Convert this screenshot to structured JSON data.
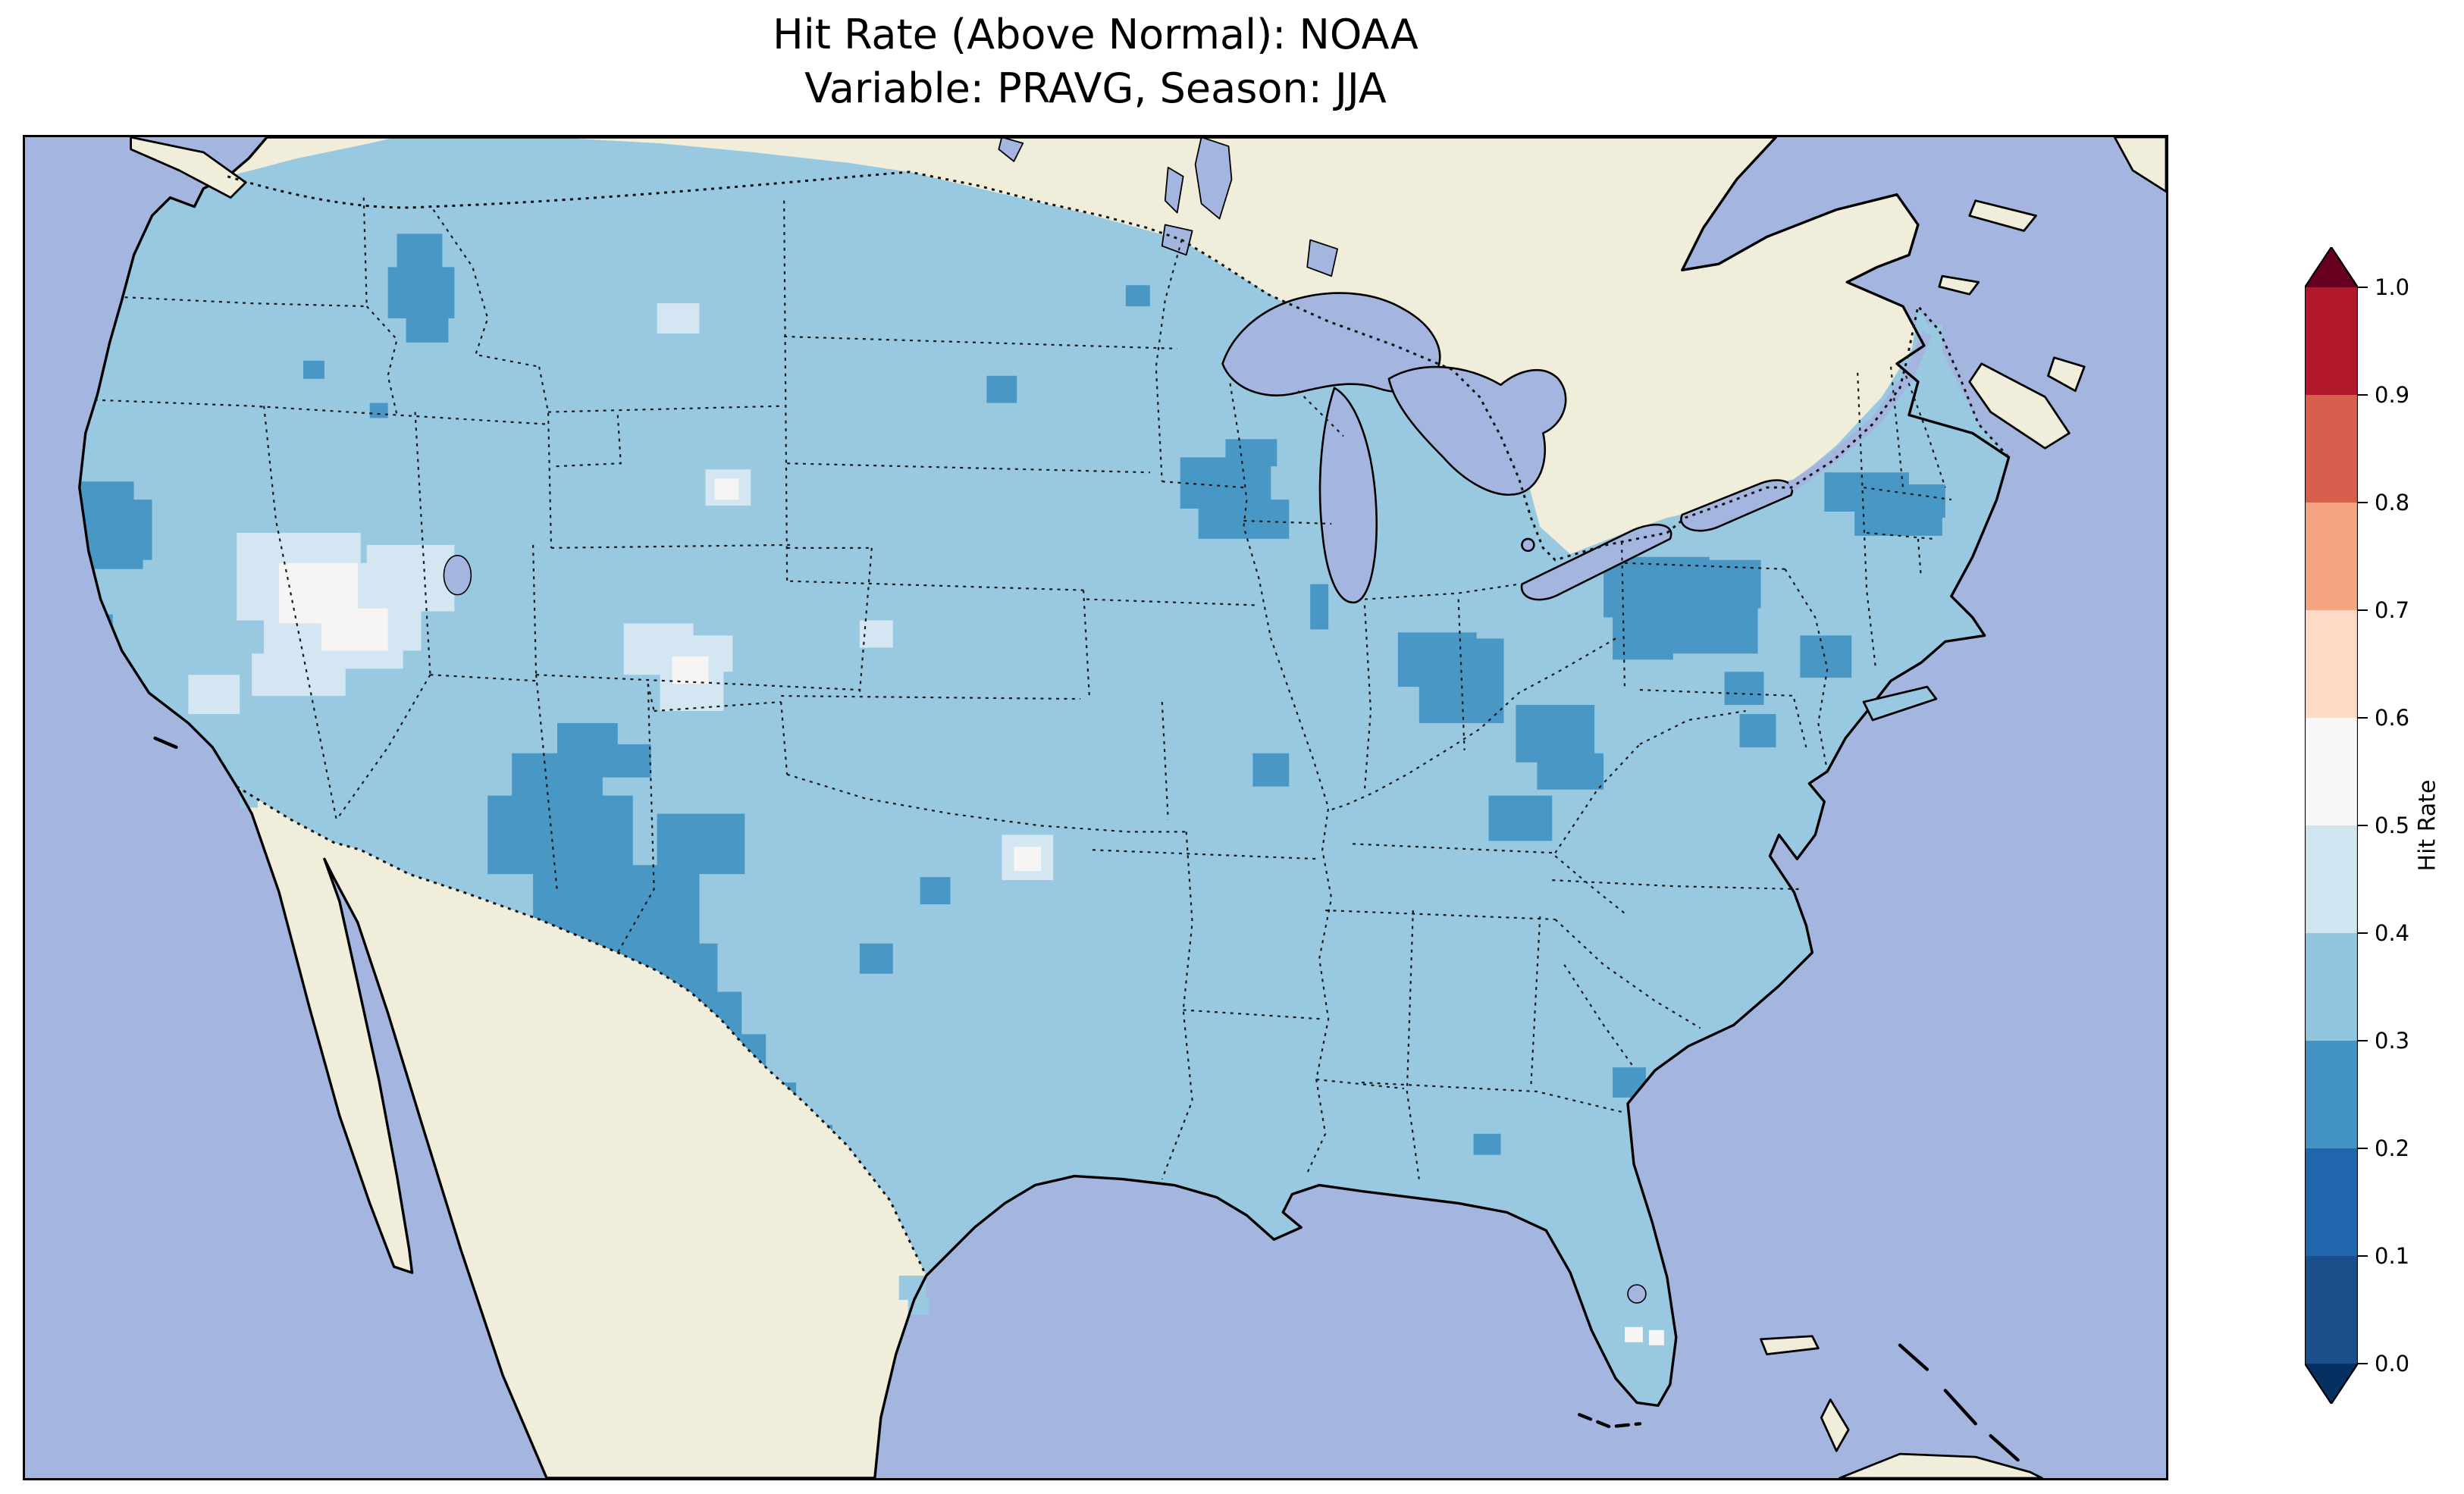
{
  "figure": {
    "title_line1": "Hit Rate (Above Normal): NOAA",
    "title_line2": "Variable: PRAVG, Season: JJA"
  },
  "colorbar": {
    "label": "Hit Rate",
    "ticks": [
      "1.0",
      "0.9",
      "0.8",
      "0.7",
      "0.6",
      "0.5",
      "0.4",
      "0.3",
      "0.2",
      "0.1",
      "0.0"
    ],
    "segments_top_to_bottom": [
      "#b2182b",
      "#d6604d",
      "#f4a582",
      "#fddbc7",
      "#f7f7f7",
      "#d1e5f0",
      "#92c5de",
      "#4393c3",
      "#2166ac",
      "#1a4f8c"
    ],
    "over_color": "#67001f",
    "under_color": "#053061"
  },
  "map_colors": {
    "ocean": "#a4b6e0",
    "land": "#f0eedb",
    "lake": "#a4b6e0",
    "base": "#99c9e0",
    "dark": "#4997c5",
    "light": "#d3e6f1",
    "white": "#f6f5f3",
    "coastline": "#000000"
  },
  "chart_data": {
    "type": "heatmap",
    "title": "Hit Rate (Above Normal): NOAA",
    "subtitle": "Variable: PRAVG, Season: JJA",
    "source": "NOAA",
    "variable": "PRAVG",
    "season": "JJA",
    "region": "Contiguous United States",
    "value_label": "Hit Rate",
    "value_range": [
      0.0,
      1.0
    ],
    "bin_edges": [
      0.0,
      0.1,
      0.2,
      0.3,
      0.4,
      0.5,
      0.6,
      0.7,
      0.8,
      0.9,
      1.0
    ],
    "colorbar_ticks": [
      1.0,
      0.9,
      0.8,
      0.7,
      0.6,
      0.5,
      0.4,
      0.3,
      0.2,
      0.1,
      0.0
    ],
    "colorbar_extend": "both",
    "legend_position": "right",
    "summary_values": [
      {
        "area": "Most of the contiguous US",
        "hit_rate": "0.3-0.4"
      },
      {
        "area": "New Mexico and west Texas",
        "hit_rate": "0.2-0.3"
      },
      {
        "area": "South Texas along Rio Grande",
        "hit_rate": "0.2-0.3"
      },
      {
        "area": "Idaho / western Montana",
        "hit_rate": "0.2-0.3"
      },
      {
        "area": "Northern California coast",
        "hit_rate": "0.2-0.3"
      },
      {
        "area": "Wisconsin",
        "hit_rate": "0.2-0.3"
      },
      {
        "area": "Indiana-Ohio",
        "hit_rate": "0.2-0.3"
      },
      {
        "area": "Ohio-Pennsylvania south of Lake Erie",
        "hit_rate": "0.2-0.3"
      },
      {
        "area": "Kentucky / West Virginia",
        "hit_rate": "0.2-0.3"
      },
      {
        "area": "Southern New England / NYC area",
        "hit_rate": "0.2-0.3"
      },
      {
        "area": "Nevada and western Utah",
        "hit_rate": "0.4-0.6"
      },
      {
        "area": "Central Colorado",
        "hit_rate": "0.4-0.6"
      },
      {
        "area": "Southern Missouri spots",
        "hit_rate": "0.4-0.5"
      },
      {
        "area": "Small spots in Nebraska and Kansas",
        "hit_rate": "0.4-0.6"
      }
    ]
  }
}
